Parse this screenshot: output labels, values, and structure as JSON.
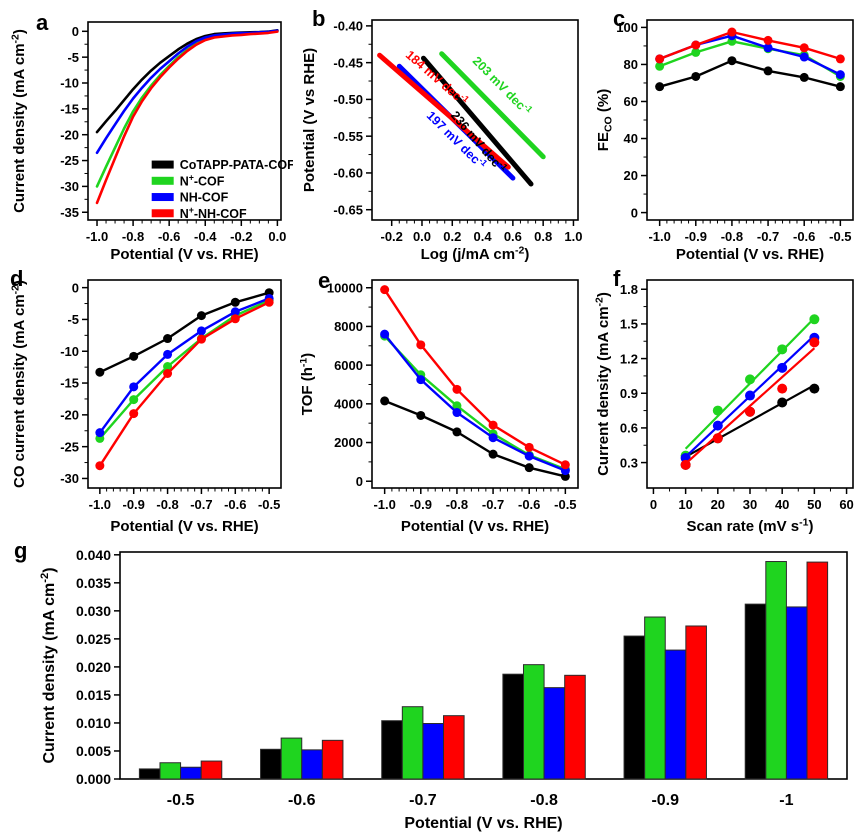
{
  "figure": {
    "background": "#ffffff"
  },
  "colors": {
    "black": "#000000",
    "green": "#1fd41f",
    "blue": "#0000ff",
    "red": "#ff0000",
    "bar_stroke": "#2b2b2b"
  },
  "chart_data": [
    {
      "letter": "a",
      "type": "line",
      "lw": 2.6,
      "xlabel": "Potential (V vs. RHE)",
      "ylabel": "Current density (mA cm^-2^)",
      "xlim": [
        -1.05,
        0.02
      ],
      "ylim": [
        -36.5,
        1.8
      ],
      "xticks": {
        "values": [
          -1.0,
          -0.8,
          -0.6,
          -0.4,
          -0.2,
          0.0
        ],
        "labels": [
          "-1.0",
          "-0.8",
          "-0.6",
          "-0.4",
          "-0.2",
          "0.0"
        ],
        "minor": 3
      },
      "yticks": {
        "values": [
          0,
          -5,
          -10,
          -15,
          -20,
          -25,
          -30,
          -35
        ],
        "labels": [
          "0",
          "-5",
          "-10",
          "-15",
          "-20",
          "-25",
          "-30",
          "-35"
        ],
        "minor": 1
      },
      "x": [
        -1.0,
        -0.95,
        -0.9,
        -0.85,
        -0.8,
        -0.75,
        -0.7,
        -0.65,
        -0.6,
        -0.55,
        -0.5,
        -0.45,
        -0.4,
        -0.35,
        -0.3,
        -0.25,
        -0.2,
        -0.15,
        -0.1,
        -0.05,
        0.0
      ],
      "series": [
        {
          "name": "CoTAPP-PATA-COF",
          "color": "black",
          "y": [
            -19.5,
            -17.4,
            -15.4,
            -13.3,
            -11.2,
            -9.3,
            -7.6,
            -6.1,
            -4.8,
            -3.5,
            -2.4,
            -1.5,
            -0.9,
            -0.55,
            -0.4,
            -0.3,
            -0.25,
            -0.2,
            -0.15,
            -0.05,
            0.2
          ]
        },
        {
          "name": "N^+^-COF",
          "color": "green",
          "y": [
            -30.0,
            -26.2,
            -22.5,
            -18.8,
            -15.5,
            -12.8,
            -10.5,
            -8.5,
            -6.7,
            -5.0,
            -3.6,
            -2.4,
            -1.5,
            -1.0,
            -0.8,
            -0.6,
            -0.5,
            -0.4,
            -0.3,
            -0.15,
            0.05
          ]
        },
        {
          "name": "NH-COF",
          "color": "blue",
          "y": [
            -23.5,
            -20.7,
            -18.0,
            -15.4,
            -13.0,
            -10.9,
            -9.0,
            -7.3,
            -5.8,
            -4.3,
            -3.0,
            -1.9,
            -1.2,
            -0.8,
            -0.6,
            -0.45,
            -0.35,
            -0.3,
            -0.2,
            -0.1,
            0.12
          ]
        },
        {
          "name": "N^+^-NH-COF",
          "color": "red",
          "y": [
            -33.2,
            -28.8,
            -24.5,
            -20.3,
            -16.5,
            -13.5,
            -11.0,
            -8.9,
            -7.0,
            -5.3,
            -3.8,
            -2.6,
            -1.7,
            -1.2,
            -1.0,
            -0.8,
            -0.7,
            -0.55,
            -0.45,
            -0.3,
            -0.05
          ]
        }
      ],
      "legend": {
        "fx": 0.33,
        "fy": 0.72,
        "step": 0.082
      }
    },
    {
      "letter": "b",
      "type": "segments",
      "lw": 5,
      "xlabel": "Log (j/mA cm^-2^)",
      "ylabel": "Potential (V vs RHE)",
      "xlim": [
        -0.33,
        1.03
      ],
      "ylim": [
        -0.664,
        -0.392
      ],
      "xticks": {
        "values": [
          -0.2,
          0.0,
          0.2,
          0.4,
          0.6,
          0.8,
          1.0
        ],
        "labels": [
          "-0.2",
          "0.0",
          "0.2",
          "0.4",
          "0.6",
          "0.8",
          "1.0"
        ],
        "minor": 3
      },
      "yticks": {
        "values": [
          -0.4,
          -0.45,
          -0.5,
          -0.55,
          -0.6,
          -0.65
        ],
        "labels": [
          "-0.40",
          "-0.45",
          "-0.50",
          "-0.55",
          "-0.60",
          "-0.65"
        ],
        "minor": 1
      },
      "series": [
        {
          "name": "CoTAPP-PATA-COF",
          "color": "black",
          "x": [
            0.01,
            0.72
          ],
          "y": [
            -0.444,
            -0.615
          ]
        },
        {
          "name": "N^+^-COF",
          "color": "green",
          "x": [
            0.13,
            0.8
          ],
          "y": [
            -0.438,
            -0.578
          ]
        },
        {
          "name": "NH-COF",
          "color": "blue",
          "x": [
            -0.15,
            0.6
          ],
          "y": [
            -0.455,
            -0.607
          ]
        },
        {
          "name": "N^+^-NH-COF",
          "color": "red",
          "x": [
            -0.28,
            0.57
          ],
          "y": [
            -0.44,
            -0.592
          ]
        }
      ],
      "annotations": [
        {
          "text": "203 mV dec^-1^",
          "color": "green",
          "series": 1,
          "t": 0.45,
          "offset": 16
        },
        {
          "text": "236 mV dec^-1^",
          "color": "black",
          "series": 0,
          "t": 0.6,
          "offset": -17
        },
        {
          "text": "197 mV dec^-1^",
          "color": "blue",
          "series": 2,
          "t": 0.58,
          "offset": -17
        },
        {
          "text": "184 mV dec^-1^",
          "color": "red",
          "series": 3,
          "t": 0.34,
          "offset": 16
        }
      ]
    },
    {
      "letter": "c",
      "type": "line",
      "markers": true,
      "lw": 2.4,
      "mr": 4.5,
      "xlabel": "Potential (V vs. RHE)",
      "ylabel": "FE~CO~ (%)",
      "xlim": [
        -1.035,
        -0.465
      ],
      "ylim": [
        -4,
        104
      ],
      "xticks": {
        "values": [
          -1.0,
          -0.9,
          -0.8,
          -0.7,
          -0.6,
          -0.5
        ],
        "labels": [
          "-1.0",
          "-0.9",
          "-0.8",
          "-0.7",
          "-0.6",
          "-0.5"
        ],
        "minor": 4
      },
      "yticks": {
        "values": [
          0,
          20,
          40,
          60,
          80,
          100
        ],
        "labels": [
          "0",
          "20",
          "40",
          "60",
          "80",
          "100"
        ],
        "minor": 1
      },
      "x": [
        -1.0,
        -0.9,
        -0.8,
        -0.7,
        -0.6,
        -0.5
      ],
      "series": [
        {
          "name": "CoTAPP-PATA-COF",
          "color": "black",
          "y": [
            68,
            73.5,
            82,
            76.5,
            73,
            68
          ]
        },
        {
          "name": "N^+^-COF",
          "color": "green",
          "y": [
            79,
            86.5,
            92.5,
            88.5,
            85,
            73.5
          ]
        },
        {
          "name": "NH-COF",
          "color": "blue",
          "y": [
            83,
            90.5,
            95.5,
            89,
            84,
            74.5
          ]
        },
        {
          "name": "N^+^-NH-COF",
          "color": "red",
          "y": [
            83,
            90.5,
            97.5,
            93,
            89,
            83
          ]
        }
      ]
    },
    {
      "letter": "d",
      "type": "line",
      "markers": true,
      "lw": 2.4,
      "mr": 4.5,
      "xlabel": "Potential (V vs. RHE)",
      "ylabel": "CO current density (mA cm^-2^)",
      "xlim": [
        -1.035,
        -0.465
      ],
      "ylim": [
        -31.5,
        1.2
      ],
      "xticks": {
        "values": [
          -1.0,
          -0.9,
          -0.8,
          -0.7,
          -0.6,
          -0.5
        ],
        "labels": [
          "-1.0",
          "-0.9",
          "-0.8",
          "-0.7",
          "-0.6",
          "-0.5"
        ],
        "minor": 4
      },
      "yticks": {
        "values": [
          0,
          -5,
          -10,
          -15,
          -20,
          -25,
          -30
        ],
        "labels": [
          "0",
          "-5",
          "-10",
          "-15",
          "-20",
          "-25",
          "-30"
        ],
        "minor": 1
      },
      "x": [
        -1.0,
        -0.9,
        -0.8,
        -0.7,
        -0.6,
        -0.5
      ],
      "series": [
        {
          "name": "CoTAPP-PATA-COF",
          "color": "black",
          "y": [
            -13.3,
            -10.8,
            -8.0,
            -4.4,
            -2.3,
            -0.8
          ]
        },
        {
          "name": "N^+^-COF",
          "color": "green",
          "y": [
            -23.7,
            -17.6,
            -12.4,
            -8.0,
            -4.4,
            -2.0
          ]
        },
        {
          "name": "NH-COF",
          "color": "blue",
          "y": [
            -22.8,
            -15.6,
            -10.5,
            -6.8,
            -3.8,
            -1.7
          ]
        },
        {
          "name": "N^+^-NH-COF",
          "color": "red",
          "y": [
            -28.0,
            -19.8,
            -13.5,
            -8.1,
            -4.9,
            -2.3
          ]
        }
      ]
    },
    {
      "letter": "e",
      "type": "line",
      "markers": true,
      "lw": 2.4,
      "mr": 4.5,
      "xlabel": "Potential (V vs. RHE)",
      "ylabel": "TOF (h^-1^)",
      "xlim": [
        -1.035,
        -0.465
      ],
      "ylim": [
        -350,
        10400
      ],
      "xticks": {
        "values": [
          -1.0,
          -0.9,
          -0.8,
          -0.7,
          -0.6,
          -0.5
        ],
        "labels": [
          "-1.0",
          "-0.9",
          "-0.8",
          "-0.7",
          "-0.6",
          "-0.5"
        ],
        "minor": 4
      },
      "yticks": {
        "values": [
          0,
          2000,
          4000,
          6000,
          8000,
          10000
        ],
        "labels": [
          "0",
          "2000",
          "4000",
          "6000",
          "8000",
          "10000"
        ],
        "minor": 1
      },
      "x": [
        -1.0,
        -0.9,
        -0.8,
        -0.7,
        -0.6,
        -0.5
      ],
      "series": [
        {
          "name": "CoTAPP-PATA-COF",
          "color": "black",
          "y": [
            4150,
            3400,
            2550,
            1400,
            700,
            250
          ]
        },
        {
          "name": "N^+^-COF",
          "color": "green",
          "y": [
            7500,
            5500,
            3900,
            2450,
            1350,
            620
          ]
        },
        {
          "name": "NH-COF",
          "color": "blue",
          "y": [
            7600,
            5250,
            3550,
            2250,
            1300,
            550
          ]
        },
        {
          "name": "N^+^-NH-COF",
          "color": "red",
          "y": [
            9900,
            7050,
            4750,
            2900,
            1750,
            850
          ]
        }
      ]
    },
    {
      "letter": "f",
      "type": "scatter-fit",
      "lw": 2.2,
      "mr": 5,
      "xlabel": "Scan rate (mV s^-1^)",
      "ylabel": "Current density (mA cm^-2^)",
      "xlim": [
        -2,
        62
      ],
      "ylim": [
        0.08,
        1.88
      ],
      "xticks": {
        "values": [
          0,
          10,
          20,
          30,
          40,
          50,
          60
        ],
        "labels": [
          "0",
          "10",
          "20",
          "30",
          "40",
          "50",
          "60"
        ],
        "minor": 1
      },
      "yticks": {
        "values": [
          0.3,
          0.6,
          0.9,
          1.2,
          1.5,
          1.8
        ],
        "labels": [
          "0.3",
          "0.6",
          "0.9",
          "1.2",
          "1.5",
          "1.8"
        ],
        "minor": 1
      },
      "x": [
        10,
        20,
        30,
        40,
        50
      ],
      "series": [
        {
          "name": "CoTAPP-PATA-COF",
          "color": "black",
          "y": [
            0.28,
            0.51,
            0.74,
            0.82,
            0.94
          ],
          "fit": [
            [
              10,
              0.35
            ],
            [
              50,
              0.97
            ]
          ]
        },
        {
          "name": "N^+^-COF",
          "color": "green",
          "y": [
            0.36,
            0.75,
            1.02,
            1.28,
            1.54
          ],
          "fit": [
            [
              10,
              0.42
            ],
            [
              50,
              1.55
            ]
          ]
        },
        {
          "name": "NH-COF",
          "color": "blue",
          "y": [
            0.34,
            0.62,
            0.88,
            1.12,
            1.38
          ],
          "fit": [
            [
              10,
              0.35
            ],
            [
              50,
              1.4
            ]
          ]
        },
        {
          "name": "N^+^-NH-COF",
          "color": "red",
          "y": [
            0.28,
            0.51,
            0.74,
            0.94,
            1.34
          ],
          "fit": [
            [
              10,
              0.29
            ],
            [
              50,
              1.29
            ]
          ]
        }
      ]
    },
    {
      "letter": "g",
      "type": "bar",
      "tickfs": 14,
      "catfs": 16,
      "labelfs": 16,
      "xlabel": "Potential (V vs. RHE)",
      "ylabel": "Current density (mA cm^-2^)",
      "ylim": [
        0,
        0.0405
      ],
      "yticks": {
        "values": [
          0,
          0.005,
          0.01,
          0.015,
          0.02,
          0.025,
          0.03,
          0.035,
          0.04
        ],
        "labels": [
          "0.000",
          "0.005",
          "0.010",
          "0.015",
          "0.020",
          "0.025",
          "0.030",
          "0.035",
          "0.040"
        ],
        "minor": 0
      },
      "categories": [
        "-0.5",
        "-0.6",
        "-0.7",
        "-0.8",
        "-0.9",
        "-1"
      ],
      "series": [
        {
          "name": "CoTAPP-PATA-COF",
          "color": "black",
          "y": [
            0.0018,
            0.0053,
            0.0104,
            0.0187,
            0.0255,
            0.0312
          ]
        },
        {
          "name": "N^+^-COF",
          "color": "green",
          "y": [
            0.0029,
            0.0073,
            0.0129,
            0.0204,
            0.0289,
            0.0388
          ]
        },
        {
          "name": "NH-COF",
          "color": "blue",
          "y": [
            0.0021,
            0.0052,
            0.0099,
            0.0163,
            0.023,
            0.0307
          ]
        },
        {
          "name": "N^+^-NH-COF",
          "color": "red",
          "y": [
            0.0032,
            0.0069,
            0.0113,
            0.0185,
            0.0273,
            0.0387
          ]
        }
      ]
    }
  ]
}
